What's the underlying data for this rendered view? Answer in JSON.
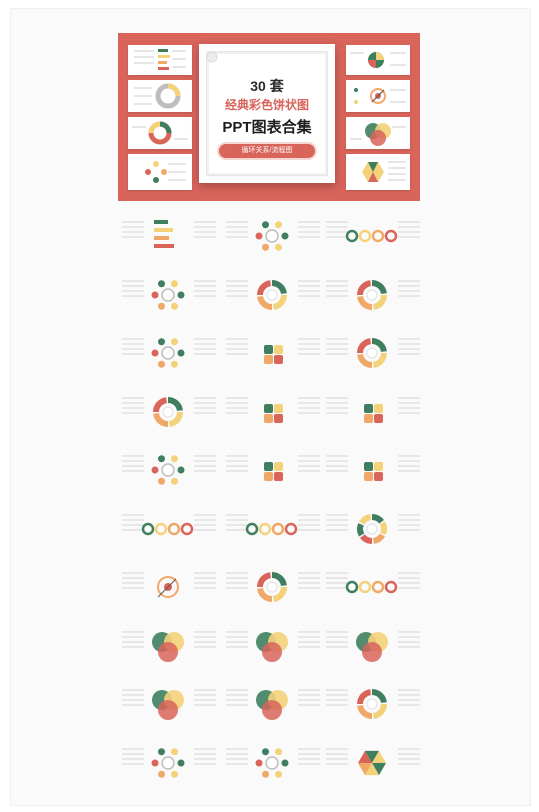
{
  "poster": {
    "count": "30 套",
    "subtitle": "经典彩色饼状图",
    "title": "PPT图表合集",
    "tag": "循环关系/流程图"
  },
  "colors": {
    "accent": "#d8645a",
    "green": "#3f7f5f",
    "yellow": "#f4d27a",
    "orange": "#f0a868",
    "grey": "#bdbdbd"
  },
  "thumbnails": {
    "left": [
      "bar-list",
      "ring",
      "cycle",
      "scatter-flow"
    ],
    "right": [
      "venn-pie",
      "target",
      "venn",
      "hexagon-cycle"
    ]
  },
  "grid": [
    [
      "bar-list",
      "circle-flow",
      "tag-cards"
    ],
    [
      "spoke-icons",
      "ring-segments",
      "ring-cycle"
    ],
    [
      "icon-flow",
      "arrow-square",
      "numbered-cycle"
    ],
    [
      "cycle-list",
      "puzzle-ring",
      "puzzle-circle"
    ],
    [
      "dot-cluster",
      "puzzle-steps",
      "puzzle-square"
    ],
    [
      "arrow-cycle",
      "arrow-cycle-2",
      "segmented-cycle"
    ],
    [
      "target",
      "dashed-ring",
      "circle-row"
    ],
    [
      "venn-three",
      "venn-flow",
      "quad-circles"
    ],
    [
      "half-circles",
      "leaf-circles",
      "pie-rings"
    ],
    [
      "dotted-ring",
      "circle-network",
      "hexagon-cycle"
    ]
  ]
}
